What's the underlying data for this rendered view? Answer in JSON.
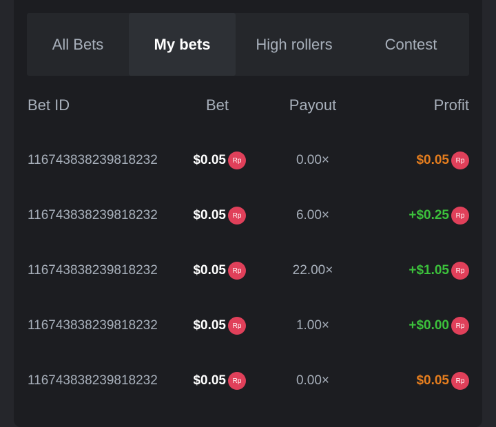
{
  "tabs": [
    {
      "label": "All Bets"
    },
    {
      "label": "My bets",
      "active": true
    },
    {
      "label": "High rollers"
    },
    {
      "label": "Contest"
    }
  ],
  "columns": {
    "id": "Bet ID",
    "bet": "Bet",
    "payout": "Payout",
    "profit": "Profit"
  },
  "currency_badge": "Rp",
  "colors": {
    "loss": "#e67e1e",
    "win": "#3cc23c",
    "badge": "#e0405a"
  },
  "rows": [
    {
      "id": "116743838239818232",
      "bet": "$0.05",
      "payout": "0.00×",
      "profit": "$0.05",
      "status": "loss"
    },
    {
      "id": "116743838239818232",
      "bet": "$0.05",
      "payout": "6.00×",
      "profit": "+$0.25",
      "status": "win"
    },
    {
      "id": "116743838239818232",
      "bet": "$0.05",
      "payout": "22.00×",
      "profit": "+$1.05",
      "status": "win"
    },
    {
      "id": "116743838239818232",
      "bet": "$0.05",
      "payout": "1.00×",
      "profit": "+$0.00",
      "status": "win"
    },
    {
      "id": "116743838239818232",
      "bet": "$0.05",
      "payout": "0.00×",
      "profit": "$0.05",
      "status": "loss"
    }
  ]
}
